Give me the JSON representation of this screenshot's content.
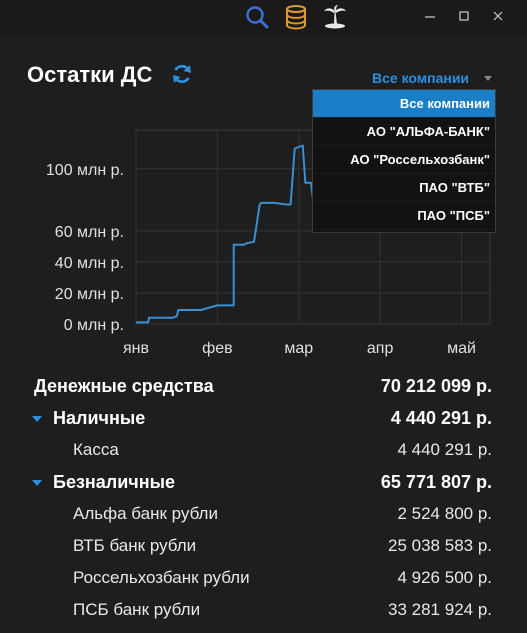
{
  "page": {
    "title": "Остатки ДС"
  },
  "toolbar": {
    "icons": [
      "search-icon",
      "database-icon",
      "palm-island-icon"
    ],
    "accent": "#2b8fe0"
  },
  "company_filter": {
    "selected": "Все компании",
    "options": [
      "Все компании",
      "АО \"АЛЬФА-БАНК\"",
      "АО \"Россельхозбанк\"",
      "ПАО \"ВТБ\"",
      "ПАО \"ПСБ\""
    ]
  },
  "chart_data": {
    "type": "line",
    "title": "",
    "xlabel": "",
    "ylabel": "",
    "x_ticks": [
      "янв",
      "фев",
      "мар",
      "апр",
      "май"
    ],
    "y_ticks": [
      "0 млн р.",
      "20 млн р.",
      "40 млн р.",
      "60 млн р.",
      "100 млн р."
    ],
    "y_tick_values": [
      0,
      20,
      40,
      60,
      100
    ],
    "ylim": [
      0,
      125
    ],
    "xlim": [
      0,
      4.35
    ],
    "grid": true,
    "series": [
      {
        "color": "#3a8fd0",
        "x": [
          0.0,
          0.15,
          0.16,
          0.45,
          0.5,
          0.52,
          0.8,
          0.86,
          1.0,
          1.1,
          1.2,
          1.2,
          1.32,
          1.36,
          1.45,
          1.52,
          1.54,
          1.7,
          1.85,
          1.9,
          1.95,
          2.05,
          2.08,
          2.15,
          2.2,
          2.25,
          2.3,
          2.4,
          2.48
        ],
        "y": [
          1,
          1,
          4,
          4,
          5,
          9,
          9,
          10,
          12,
          12,
          12,
          51,
          51,
          52,
          53,
          77,
          78,
          78,
          77,
          77,
          113,
          115,
          91,
          91,
          70,
          70,
          70,
          70,
          70
        ]
      }
    ]
  },
  "summary": {
    "total": {
      "label": "Денежные средства",
      "value": "70 212 099 р."
    },
    "cash": {
      "label": "Наличные",
      "value": "4 440 291 р."
    },
    "cash_items": [
      {
        "label": "Касса",
        "value": "4 440 291 р."
      }
    ],
    "noncash": {
      "label": "Безналичные",
      "value": "65 771 807 р."
    },
    "noncash_items": [
      {
        "label": "Альфа банк рубли",
        "value": "2 524 800 р."
      },
      {
        "label": "ВТБ банк рубли",
        "value": "25 038 583 р."
      },
      {
        "label": "Россельхозбанк рубли",
        "value": "4 926 500 р."
      },
      {
        "label": "ПСБ банк рубли",
        "value": "33 281 924 р."
      }
    ]
  }
}
